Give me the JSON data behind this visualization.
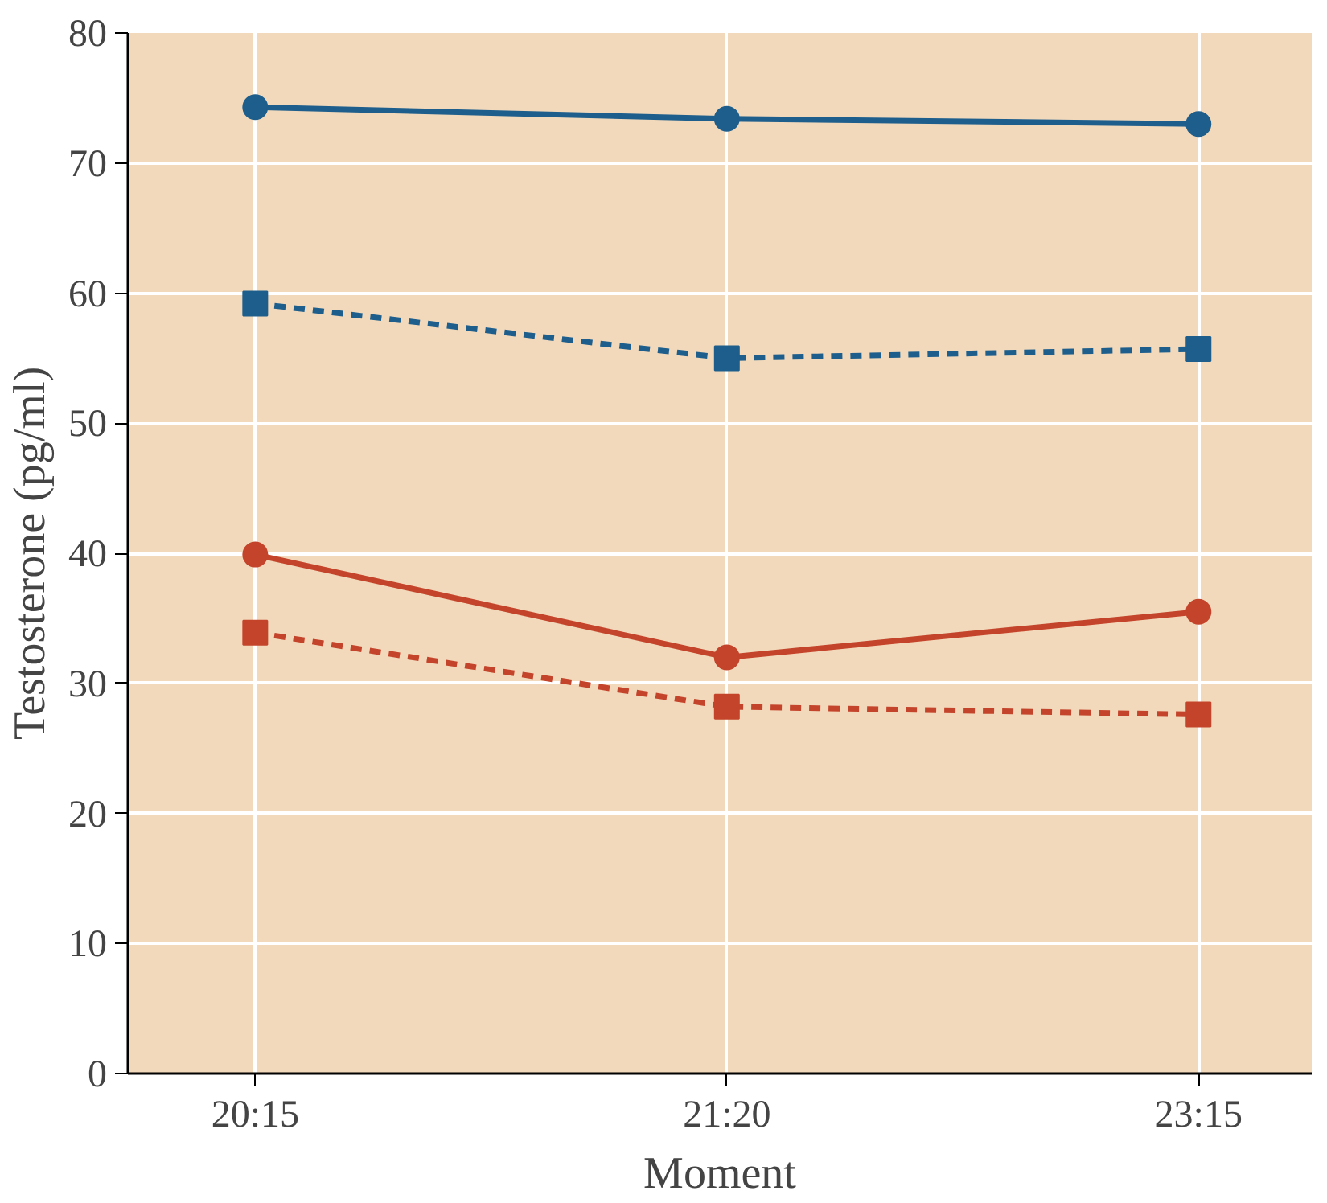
{
  "chart_data": {
    "type": "line",
    "xlabel": "Moment",
    "ylabel": "Testosterone (pg/ml)",
    "categories": [
      "20:15",
      "21:20",
      "23:15"
    ],
    "ylim": [
      0,
      80
    ],
    "yticks": [
      0,
      10,
      20,
      30,
      40,
      50,
      60,
      70,
      80
    ],
    "grid": true,
    "series": [
      {
        "color": "#1d5e8c",
        "values": [
          74.3,
          73.4,
          73.0
        ],
        "marker": "circle",
        "line_style": "solid"
      },
      {
        "color": "#1d5e8c",
        "values": [
          59.2,
          55.0,
          55.7
        ],
        "marker": "square",
        "line_style": "dashed"
      },
      {
        "color": "#c4442b",
        "values": [
          39.9,
          32.0,
          35.5
        ],
        "marker": "circle",
        "line_style": "solid"
      },
      {
        "color": "#c4442b",
        "values": [
          33.9,
          28.2,
          27.6
        ],
        "marker": "square",
        "line_style": "dashed"
      }
    ]
  }
}
